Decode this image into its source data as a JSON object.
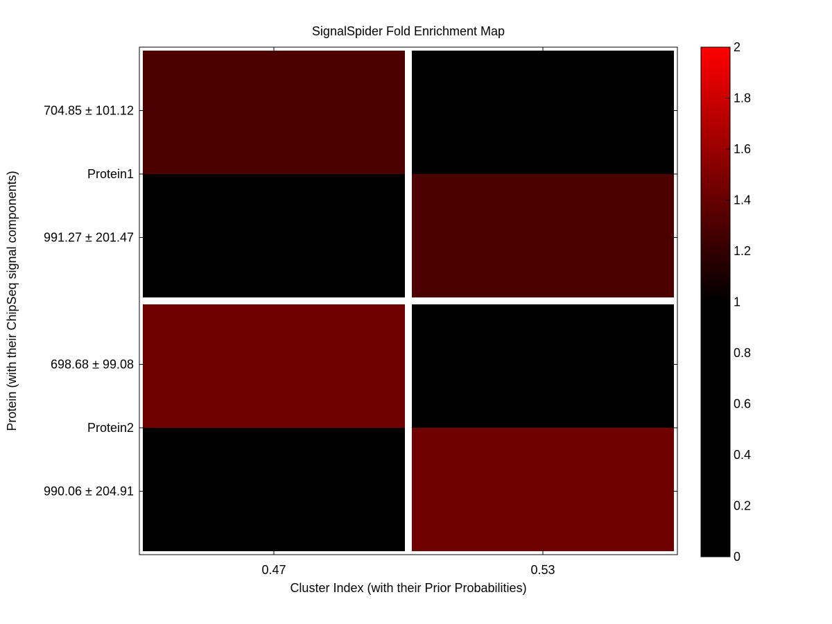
{
  "chart_data": {
    "type": "heatmap",
    "title": "SignalSpider Fold Enrichment Map",
    "xlabel": "Cluster Index (with their Prior Probabilities)",
    "ylabel": "Protein (with their ChipSeq signal components)",
    "x_categories": [
      "0.47",
      "0.53"
    ],
    "y_tick_labels": [
      "704.85 ± 101.12",
      "Protein1",
      "991.27 ± 201.47",
      "698.68 ± 99.08",
      "Protein2",
      "990.06 ± 204.91"
    ],
    "proteins": [
      {
        "name": "Protein1",
        "components": [
          {
            "label": "704.85 ± 101.12",
            "values": [
              1.3,
              1.0
            ]
          },
          {
            "label": "991.27 ± 201.47",
            "values": [
              1.0,
              1.3
            ]
          }
        ]
      },
      {
        "name": "Protein2",
        "components": [
          {
            "label": "698.68 ± 99.08",
            "values": [
              1.44,
              1.0
            ]
          },
          {
            "label": "990.06 ± 204.91",
            "values": [
              1.0,
              1.44
            ]
          }
        ]
      }
    ],
    "colorbar": {
      "min": 0,
      "max": 2,
      "ticks": [
        "0",
        "0.2",
        "0.4",
        "0.6",
        "0.8",
        "1",
        "1.2",
        "1.4",
        "1.6",
        "1.8",
        "2"
      ],
      "color_low": "#000000",
      "color_high": "#ff0000",
      "neutral_value": 1
    },
    "separator_color": "#ffffff",
    "grid": false
  }
}
